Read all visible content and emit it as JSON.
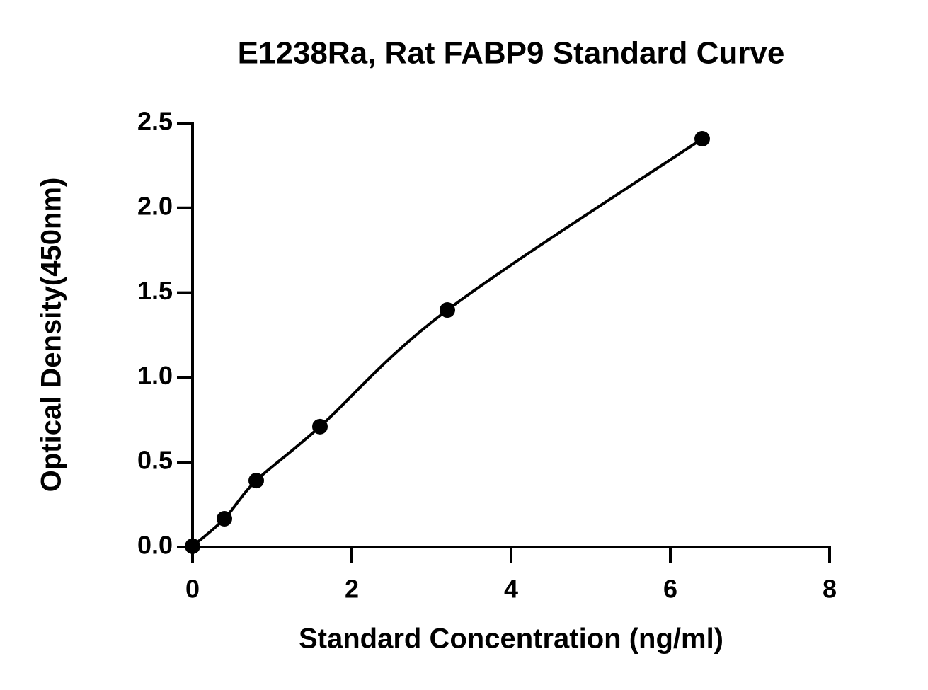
{
  "chart_data": {
    "type": "scatter",
    "title": "E1238Ra, Rat FABP9 Standard Curve",
    "x_label": "Standard Concentration (ng/ml)",
    "y_label": "Optical Density(450nm)",
    "series": [
      {
        "x": [
          0,
          0.4,
          0.8,
          1.6,
          3.2,
          6.4
        ],
        "values": [
          0.005,
          0.167,
          0.392,
          0.71,
          1.398,
          2.408
        ],
        "color": "#000000"
      }
    ],
    "fit_curve": true,
    "xlim": [
      0,
      8
    ],
    "xticks": [
      0,
      2,
      4,
      6,
      8
    ],
    "ylim": [
      0,
      2.5
    ],
    "yticks": [
      {
        "value": 0,
        "label": "0.0"
      },
      {
        "value": 0.5,
        "label": "0.5"
      },
      {
        "value": 1,
        "label": "1.0"
      },
      {
        "value": 1.5,
        "label": "1.5"
      },
      {
        "value": 2,
        "label": "2.0"
      },
      {
        "value": 2.5,
        "label": "2.5"
      }
    ]
  }
}
